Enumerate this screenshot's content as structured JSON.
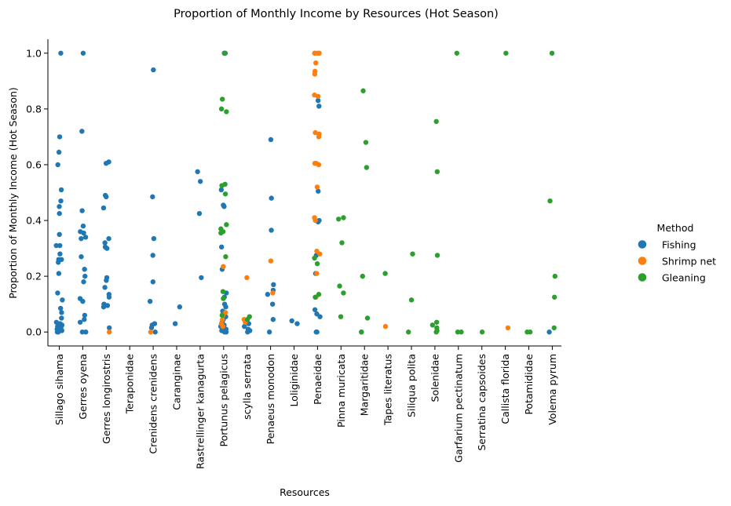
{
  "chart_data": {
    "type": "scatter",
    "title": "Proportion of Monthly Income by Resources (Hot Season)",
    "xlabel": "Resources",
    "ylabel": "Proportion of Monthly Income (Hot Season)",
    "ylim": [
      -0.05,
      1.05
    ],
    "yticks": [
      "0.0",
      "0.2",
      "0.4",
      "0.6",
      "0.8",
      "1.0"
    ],
    "ytick_values": [
      0.0,
      0.2,
      0.4,
      0.6,
      0.8,
      1.0
    ],
    "categories": [
      "Sillago sihama",
      "Gerres oyena",
      "Gerres longirostris",
      "Teraponidae",
      "Crenidens crenidens",
      "Caranginae",
      "Rastrellinger kanagurta",
      "Portunus pelagicus",
      "scylla serrata",
      "Penaeus monodon",
      "Loliginidae",
      "Penaeidae",
      "Pinna muricata",
      "Margaritidae",
      "Tapes literatus",
      "Siliqua polita",
      "Solenidae",
      "Garfarium pectinatum",
      "Serratina capsoides",
      "Callista florida",
      "Potamididae",
      "Volema pyrum"
    ],
    "grid": false,
    "legend_placement": "center-right",
    "legend_title": "Method",
    "series": [
      {
        "name": "Fishing",
        "color": "#1f77b4",
        "points": [
          [
            "Sillago sihama",
            1.0
          ],
          [
            "Sillago sihama",
            0.7
          ],
          [
            "Sillago sihama",
            0.645
          ],
          [
            "Sillago sihama",
            0.6
          ],
          [
            "Sillago sihama",
            0.51
          ],
          [
            "Sillago sihama",
            0.47
          ],
          [
            "Sillago sihama",
            0.45
          ],
          [
            "Sillago sihama",
            0.425
          ],
          [
            "Sillago sihama",
            0.35
          ],
          [
            "Sillago sihama",
            0.31
          ],
          [
            "Sillago sihama",
            0.31
          ],
          [
            "Sillago sihama",
            0.28
          ],
          [
            "Sillago sihama",
            0.26
          ],
          [
            "Sillago sihama",
            0.26
          ],
          [
            "Sillago sihama",
            0.25
          ],
          [
            "Sillago sihama",
            0.21
          ],
          [
            "Sillago sihama",
            0.14
          ],
          [
            "Sillago sihama",
            0.115
          ],
          [
            "Sillago sihama",
            0.085
          ],
          [
            "Sillago sihama",
            0.07
          ],
          [
            "Sillago sihama",
            0.05
          ],
          [
            "Sillago sihama",
            0.035
          ],
          [
            "Sillago sihama",
            0.03
          ],
          [
            "Sillago sihama",
            0.025
          ],
          [
            "Sillago sihama",
            0.02
          ],
          [
            "Sillago sihama",
            0.015
          ],
          [
            "Sillago sihama",
            0.01
          ],
          [
            "Sillago sihama",
            0.005
          ],
          [
            "Sillago sihama",
            0.0
          ],
          [
            "Sillago sihama",
            0.0
          ],
          [
            "Gerres oyena",
            1.0
          ],
          [
            "Gerres oyena",
            0.72
          ],
          [
            "Gerres oyena",
            0.435
          ],
          [
            "Gerres oyena",
            0.38
          ],
          [
            "Gerres oyena",
            0.36
          ],
          [
            "Gerres oyena",
            0.355
          ],
          [
            "Gerres oyena",
            0.34
          ],
          [
            "Gerres oyena",
            0.335
          ],
          [
            "Gerres oyena",
            0.27
          ],
          [
            "Gerres oyena",
            0.225
          ],
          [
            "Gerres oyena",
            0.2
          ],
          [
            "Gerres oyena",
            0.18
          ],
          [
            "Gerres oyena",
            0.12
          ],
          [
            "Gerres oyena",
            0.11
          ],
          [
            "Gerres oyena",
            0.06
          ],
          [
            "Gerres oyena",
            0.045
          ],
          [
            "Gerres oyena",
            0.035
          ],
          [
            "Gerres oyena",
            0.0
          ],
          [
            "Gerres oyena",
            0.0
          ],
          [
            "Gerres longirostris",
            0.61
          ],
          [
            "Gerres longirostris",
            0.605
          ],
          [
            "Gerres longirostris",
            0.49
          ],
          [
            "Gerres longirostris",
            0.485
          ],
          [
            "Gerres longirostris",
            0.445
          ],
          [
            "Gerres longirostris",
            0.335
          ],
          [
            "Gerres longirostris",
            0.32
          ],
          [
            "Gerres longirostris",
            0.305
          ],
          [
            "Gerres longirostris",
            0.3
          ],
          [
            "Gerres longirostris",
            0.195
          ],
          [
            "Gerres longirostris",
            0.185
          ],
          [
            "Gerres longirostris",
            0.16
          ],
          [
            "Gerres longirostris",
            0.135
          ],
          [
            "Gerres longirostris",
            0.125
          ],
          [
            "Gerres longirostris",
            0.1
          ],
          [
            "Gerres longirostris",
            0.095
          ],
          [
            "Gerres longirostris",
            0.09
          ],
          [
            "Gerres longirostris",
            0.015
          ],
          [
            "Crenidens crenidens",
            0.94
          ],
          [
            "Crenidens crenidens",
            0.485
          ],
          [
            "Crenidens crenidens",
            0.335
          ],
          [
            "Crenidens crenidens",
            0.275
          ],
          [
            "Crenidens crenidens",
            0.18
          ],
          [
            "Crenidens crenidens",
            0.11
          ],
          [
            "Crenidens crenidens",
            0.03
          ],
          [
            "Crenidens crenidens",
            0.025
          ],
          [
            "Crenidens crenidens",
            0.015
          ],
          [
            "Crenidens crenidens",
            0.0
          ],
          [
            "Caranginae",
            0.09
          ],
          [
            "Caranginae",
            0.03
          ],
          [
            "Rastrellinger kanagurta",
            0.575
          ],
          [
            "Rastrellinger kanagurta",
            0.54
          ],
          [
            "Rastrellinger kanagurta",
            0.425
          ],
          [
            "Rastrellinger kanagurta",
            0.195
          ],
          [
            "Portunus pelagicus",
            1.0
          ],
          [
            "Portunus pelagicus",
            1.0
          ],
          [
            "Portunus pelagicus",
            1.0
          ],
          [
            "Portunus pelagicus",
            0.51
          ],
          [
            "Portunus pelagicus",
            0.455
          ],
          [
            "Portunus pelagicus",
            0.45
          ],
          [
            "Portunus pelagicus",
            0.305
          ],
          [
            "Portunus pelagicus",
            0.225
          ],
          [
            "Portunus pelagicus",
            0.14
          ],
          [
            "Portunus pelagicus",
            0.125
          ],
          [
            "Portunus pelagicus",
            0.1
          ],
          [
            "Portunus pelagicus",
            0.09
          ],
          [
            "Portunus pelagicus",
            0.075
          ],
          [
            "Portunus pelagicus",
            0.055
          ],
          [
            "Portunus pelagicus",
            0.045
          ],
          [
            "Portunus pelagicus",
            0.035
          ],
          [
            "Portunus pelagicus",
            0.025
          ],
          [
            "Portunus pelagicus",
            0.02
          ],
          [
            "Portunus pelagicus",
            0.015
          ],
          [
            "Portunus pelagicus",
            0.01
          ],
          [
            "Portunus pelagicus",
            0.005
          ],
          [
            "Portunus pelagicus",
            0.0
          ],
          [
            "Portunus pelagicus",
            0.0
          ],
          [
            "scylla serrata",
            0.03
          ],
          [
            "scylla serrata",
            0.02
          ],
          [
            "scylla serrata",
            0.01
          ],
          [
            "scylla serrata",
            0.005
          ],
          [
            "scylla serrata",
            0.0
          ],
          [
            "Penaeus monodon",
            0.69
          ],
          [
            "Penaeus monodon",
            0.48
          ],
          [
            "Penaeus monodon",
            0.365
          ],
          [
            "Penaeus monodon",
            0.17
          ],
          [
            "Penaeus monodon",
            0.15
          ],
          [
            "Penaeus monodon",
            0.135
          ],
          [
            "Penaeus monodon",
            0.1
          ],
          [
            "Penaeus monodon",
            0.045
          ],
          [
            "Penaeus monodon",
            0.0
          ],
          [
            "Loliginidae",
            0.04
          ],
          [
            "Loliginidae",
            0.03
          ],
          [
            "Penaeidae",
            0.83
          ],
          [
            "Penaeidae",
            0.81
          ],
          [
            "Penaeidae",
            0.505
          ],
          [
            "Penaeidae",
            0.4
          ],
          [
            "Penaeidae",
            0.395
          ],
          [
            "Penaeidae",
            0.275
          ],
          [
            "Penaeidae",
            0.21
          ],
          [
            "Penaeidae",
            0.08
          ],
          [
            "Penaeidae",
            0.065
          ],
          [
            "Penaeidae",
            0.055
          ],
          [
            "Penaeidae",
            0.0
          ],
          [
            "Penaeidae",
            0.0
          ],
          [
            "Margaritidae",
            0.0
          ],
          [
            "Volema pyrum",
            0.0
          ]
        ]
      },
      {
        "name": "Shrimp net",
        "color": "#ff7f0e",
        "points": [
          [
            "Gerres longirostris",
            0.0
          ],
          [
            "Crenidens crenidens",
            0.0
          ],
          [
            "Portunus pelagicus",
            0.235
          ],
          [
            "Portunus pelagicus",
            0.07
          ],
          [
            "Portunus pelagicus",
            0.06
          ],
          [
            "Portunus pelagicus",
            0.045
          ],
          [
            "Portunus pelagicus",
            0.03
          ],
          [
            "Portunus pelagicus",
            0.02
          ],
          [
            "scylla serrata",
            0.195
          ],
          [
            "scylla serrata",
            0.045
          ],
          [
            "scylla serrata",
            0.035
          ],
          [
            "Penaeus monodon",
            0.255
          ],
          [
            "Penaeus monodon",
            0.14
          ],
          [
            "Penaeidae",
            1.0
          ],
          [
            "Penaeidae",
            1.0
          ],
          [
            "Penaeidae",
            1.0
          ],
          [
            "Penaeidae",
            1.0
          ],
          [
            "Penaeidae",
            1.0
          ],
          [
            "Penaeidae",
            0.965
          ],
          [
            "Penaeidae",
            0.935
          ],
          [
            "Penaeidae",
            0.925
          ],
          [
            "Penaeidae",
            0.85
          ],
          [
            "Penaeidae",
            0.845
          ],
          [
            "Penaeidae",
            0.715
          ],
          [
            "Penaeidae",
            0.71
          ],
          [
            "Penaeidae",
            0.7
          ],
          [
            "Penaeidae",
            0.605
          ],
          [
            "Penaeidae",
            0.605
          ],
          [
            "Penaeidae",
            0.6
          ],
          [
            "Penaeidae",
            0.52
          ],
          [
            "Penaeidae",
            0.41
          ],
          [
            "Penaeidae",
            0.4
          ],
          [
            "Penaeidae",
            0.29
          ],
          [
            "Penaeidae",
            0.28
          ],
          [
            "Penaeidae",
            0.21
          ],
          [
            "Penaeidae",
            0.125
          ],
          [
            "Tapes literatus",
            0.02
          ],
          [
            "Callista florida",
            0.015
          ]
        ]
      },
      {
        "name": "Gleaning",
        "color": "#2ca02c",
        "points": [
          [
            "Portunus pelagicus",
            1.0
          ],
          [
            "Portunus pelagicus",
            0.835
          ],
          [
            "Portunus pelagicus",
            0.8
          ],
          [
            "Portunus pelagicus",
            0.79
          ],
          [
            "Portunus pelagicus",
            0.53
          ],
          [
            "Portunus pelagicus",
            0.525
          ],
          [
            "Portunus pelagicus",
            0.495
          ],
          [
            "Portunus pelagicus",
            0.385
          ],
          [
            "Portunus pelagicus",
            0.37
          ],
          [
            "Portunus pelagicus",
            0.36
          ],
          [
            "Portunus pelagicus",
            0.355
          ],
          [
            "Portunus pelagicus",
            0.27
          ],
          [
            "Portunus pelagicus",
            0.145
          ],
          [
            "Portunus pelagicus",
            0.12
          ],
          [
            "Portunus pelagicus",
            0.06
          ],
          [
            "scylla serrata",
            0.055
          ],
          [
            "scylla serrata",
            0.045
          ],
          [
            "Penaeidae",
            0.265
          ],
          [
            "Penaeidae",
            0.245
          ],
          [
            "Penaeidae",
            0.135
          ],
          [
            "Penaeidae",
            0.125
          ],
          [
            "Pinna muricata",
            0.41
          ],
          [
            "Pinna muricata",
            0.405
          ],
          [
            "Pinna muricata",
            0.32
          ],
          [
            "Pinna muricata",
            0.165
          ],
          [
            "Pinna muricata",
            0.14
          ],
          [
            "Pinna muricata",
            0.055
          ],
          [
            "Margaritidae",
            0.865
          ],
          [
            "Margaritidae",
            0.68
          ],
          [
            "Margaritidae",
            0.59
          ],
          [
            "Margaritidae",
            0.2
          ],
          [
            "Margaritidae",
            0.05
          ],
          [
            "Margaritidae",
            0.0
          ],
          [
            "Tapes literatus",
            0.21
          ],
          [
            "Siliqua polita",
            0.28
          ],
          [
            "Siliqua polita",
            0.115
          ],
          [
            "Siliqua polita",
            0.0
          ],
          [
            "Solenidae",
            0.755
          ],
          [
            "Solenidae",
            0.575
          ],
          [
            "Solenidae",
            0.275
          ],
          [
            "Solenidae",
            0.035
          ],
          [
            "Solenidae",
            0.025
          ],
          [
            "Solenidae",
            0.015
          ],
          [
            "Solenidae",
            0.005
          ],
          [
            "Solenidae",
            0.0
          ],
          [
            "Garfarium pectinatum",
            1.0
          ],
          [
            "Garfarium pectinatum",
            0.0
          ],
          [
            "Garfarium pectinatum",
            0.0
          ],
          [
            "Serratina capsoides",
            0.0
          ],
          [
            "Callista florida",
            1.0
          ],
          [
            "Potamididae",
            0.0
          ],
          [
            "Potamididae",
            0.0
          ],
          [
            "Volema pyrum",
            1.0
          ],
          [
            "Volema pyrum",
            0.47
          ],
          [
            "Volema pyrum",
            0.2
          ],
          [
            "Volema pyrum",
            0.125
          ],
          [
            "Volema pyrum",
            0.015
          ]
        ]
      }
    ]
  }
}
